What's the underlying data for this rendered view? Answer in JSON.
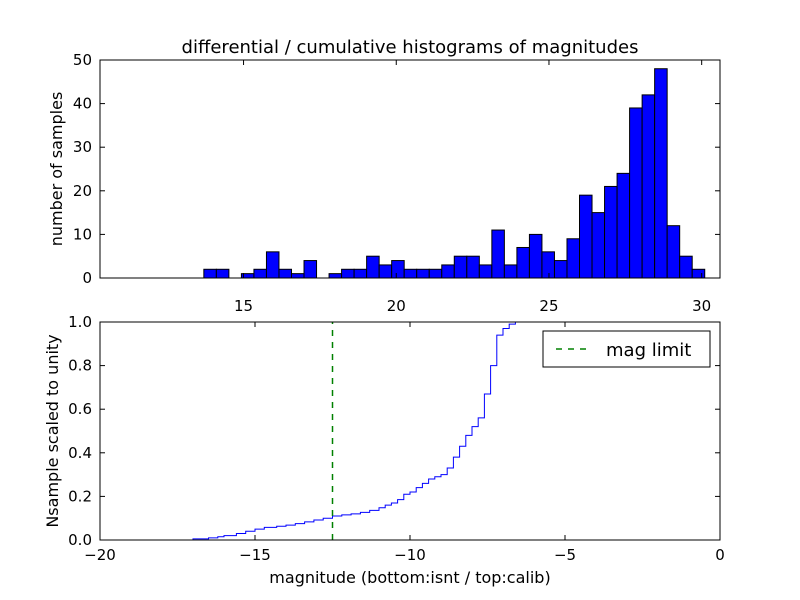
{
  "figure": {
    "title": "differential / cumulative histograms of magnitudes"
  },
  "chart_data": [
    {
      "type": "bar",
      "subtype": "histogram",
      "title": "differential / cumulative histograms of magnitudes",
      "xlabel": "",
      "ylabel": "number of samples",
      "xlim": [
        10.3,
        30.6
      ],
      "ylim": [
        0,
        50
      ],
      "xticks": [
        15,
        20,
        25,
        30
      ],
      "yticks": [
        0,
        10,
        20,
        30,
        40,
        50
      ],
      "xtick_position": "top",
      "bin_width": 0.41,
      "bar_color": "#0000ff",
      "edge_color": "#000000",
      "bin_lefts": [
        13.7,
        14.11,
        14.52,
        14.93,
        15.34,
        15.75,
        16.16,
        16.57,
        16.98,
        17.39,
        17.8,
        18.21,
        18.62,
        19.03,
        19.44,
        19.85,
        20.26,
        20.67,
        21.08,
        21.49,
        21.9,
        22.31,
        22.72,
        23.13,
        23.54,
        23.95,
        24.36,
        24.77,
        25.18,
        25.59,
        26.0,
        26.41,
        26.82,
        27.23,
        27.64,
        28.05,
        28.46,
        28.87,
        29.28,
        29.69
      ],
      "values": [
        2,
        2,
        0,
        1,
        2,
        6,
        2,
        1,
        4,
        0,
        1,
        2,
        2,
        5,
        3,
        4,
        2,
        2,
        2,
        3,
        5,
        5,
        3,
        11,
        3,
        7,
        10,
        6,
        4,
        9,
        19,
        15,
        21,
        24,
        39,
        42,
        48,
        12,
        5,
        2
      ]
    },
    {
      "type": "line",
      "subtype": "cumulative-step",
      "title": "",
      "xlabel": "magnitude (bottom:isnt / top:calib)",
      "ylabel": "Nsample scaled to unity",
      "xlim": [
        -20,
        0
      ],
      "ylim": [
        0,
        1.0
      ],
      "xticks": [
        -20,
        -15,
        -10,
        -5,
        0
      ],
      "yticks": [
        0.0,
        0.2,
        0.4,
        0.6,
        0.8,
        1.0
      ],
      "xtick_labels": [
        "−20",
        "−15",
        "−10",
        "−5",
        "0"
      ],
      "ytick_labels": [
        "0.0",
        "0.2",
        "0.4",
        "0.6",
        "0.8",
        "1.0"
      ],
      "series": [
        {
          "color": "#0000ff",
          "x": [
            -20.0,
            -17.0,
            -16.5,
            -16.2,
            -16.0,
            -15.6,
            -15.3,
            -15.0,
            -14.7,
            -14.3,
            -14.0,
            -13.7,
            -13.4,
            -13.1,
            -12.8,
            -12.5,
            -12.2,
            -11.9,
            -11.6,
            -11.3,
            -11.0,
            -10.8,
            -10.6,
            -10.4,
            -10.2,
            -10.0,
            -9.8,
            -9.6,
            -9.4,
            -9.2,
            -9.0,
            -8.8,
            -8.6,
            -8.4,
            -8.2,
            -8.0,
            -7.8,
            -7.6,
            -7.4,
            -7.2,
            -7.0,
            -6.8,
            -6.6,
            -6.4
          ],
          "y": [
            0.0,
            0.005,
            0.01,
            0.015,
            0.02,
            0.03,
            0.04,
            0.05,
            0.058,
            0.063,
            0.068,
            0.075,
            0.083,
            0.092,
            0.1,
            0.11,
            0.115,
            0.12,
            0.127,
            0.136,
            0.148,
            0.16,
            0.17,
            0.185,
            0.21,
            0.22,
            0.24,
            0.26,
            0.28,
            0.29,
            0.3,
            0.33,
            0.38,
            0.43,
            0.48,
            0.52,
            0.56,
            0.67,
            0.8,
            0.94,
            0.97,
            0.99,
            1.0,
            1.0
          ]
        },
        {
          "name": "mag limit",
          "style": "dashed",
          "color": "#008000",
          "x": [
            -12.5,
            -12.5
          ],
          "y": [
            0,
            1.0
          ]
        }
      ],
      "legend": {
        "entries": [
          "mag limit"
        ],
        "position": "upper-right"
      }
    }
  ]
}
